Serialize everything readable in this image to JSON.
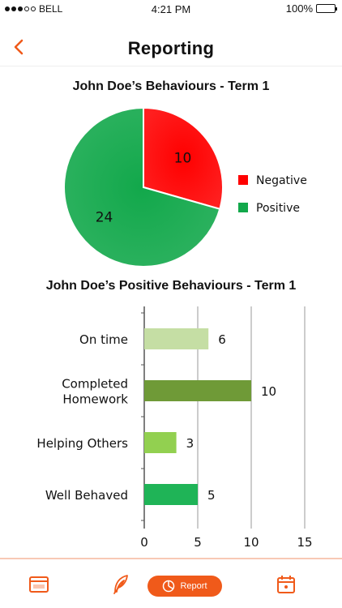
{
  "status_bar": {
    "carrier": "BELL",
    "time": "4:21 PM",
    "battery": "100%"
  },
  "header": {
    "title": "Reporting"
  },
  "colors": {
    "accent": "#f05a1a",
    "negative": "#ff0000",
    "positive": "#12a84b"
  },
  "pie_chart_title": "John Doe’s Behaviours - Term 1",
  "bar_chart_title": "John Doe’s Positive Behaviours - Term 1",
  "bottom_nav": {
    "items": [
      {
        "icon": "browser-window-icon"
      },
      {
        "icon": "feather-icon"
      },
      {
        "icon": "pie-chart-icon",
        "label": "Report",
        "active": true
      },
      {
        "icon": "calendar-icon"
      }
    ]
  },
  "chart_data": [
    {
      "type": "pie",
      "title": "John Doe’s Behaviours - Term 1",
      "labels": [
        "Negative",
        "Positive"
      ],
      "values": [
        10,
        24
      ],
      "colors": [
        "#ff0000",
        "#12a84b"
      ],
      "legend": "right"
    },
    {
      "type": "bar",
      "orientation": "horizontal",
      "title": "John Doe’s Positive Behaviours - Term 1",
      "categories": [
        "On time",
        "Completed Homework",
        "Helping Others",
        "Well Behaved"
      ],
      "category_lines": [
        [
          "On time"
        ],
        [
          "Completed",
          "Homework"
        ],
        [
          "Helping Others"
        ],
        [
          "Well Behaved"
        ]
      ],
      "values": [
        6,
        10,
        3,
        5
      ],
      "colors": [
        "#c5dea4",
        "#6f9a37",
        "#92d050",
        "#1fb457"
      ],
      "xlim": [
        0,
        15
      ],
      "xticks": [
        0,
        5,
        10,
        15
      ],
      "grid": true
    }
  ]
}
